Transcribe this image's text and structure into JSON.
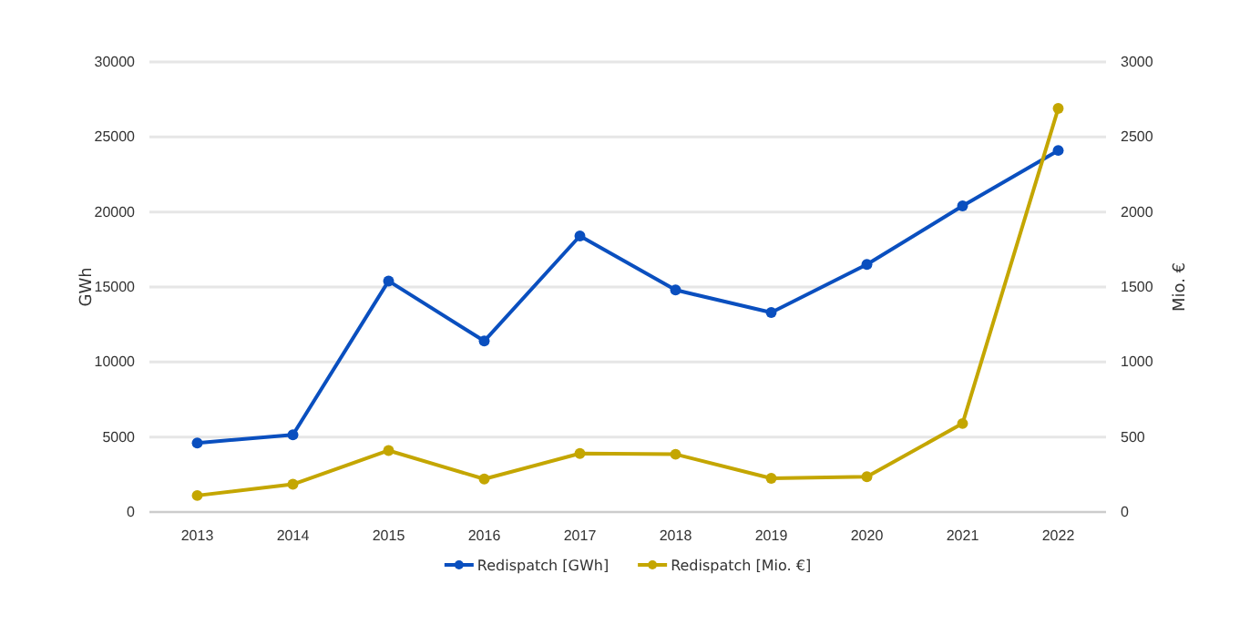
{
  "chart_data": {
    "type": "line",
    "categories": [
      "2013",
      "2014",
      "2015",
      "2016",
      "2017",
      "2018",
      "2019",
      "2020",
      "2021",
      "2022"
    ],
    "series": [
      {
        "name": "Redispatch [GWh]",
        "color": "#0a4fbf",
        "values": [
          4600,
          5150,
          15400,
          11400,
          18400,
          14800,
          13300,
          16500,
          20400,
          24100
        ]
      },
      {
        "name": "Redispatch [Mio. €]",
        "color": "#c4a600",
        "axis": "y2",
        "values": [
          110,
          185,
          410,
          220,
          390,
          385,
          225,
          235,
          590,
          2690
        ]
      }
    ],
    "ylabel": "GWh",
    "y2label": "Mio. €",
    "ylim": [
      0,
      30000
    ],
    "yticks": [
      0,
      5000,
      10000,
      15000,
      20000,
      25000,
      30000
    ],
    "y2lim": [
      0,
      3000
    ],
    "y2ticks": [
      0,
      500,
      1000,
      1500,
      2000,
      2500,
      3000
    ],
    "grid": "y",
    "legend": "bottom",
    "marker": "circle",
    "line_style": "solid"
  }
}
